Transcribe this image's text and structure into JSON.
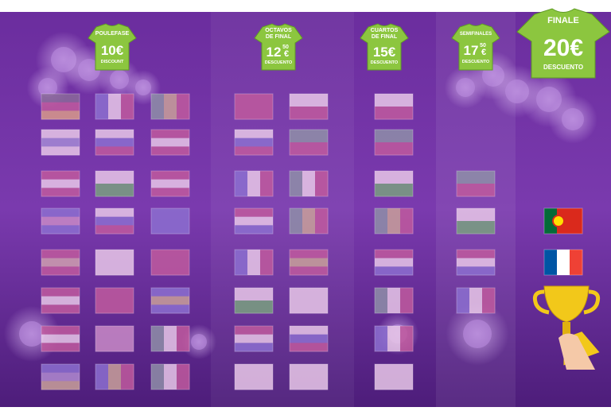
{
  "stages": [
    {
      "name_lines": [
        "POULEFASE"
      ],
      "price": "10€",
      "label": "DISCOUNT"
    },
    {
      "name_lines": [
        "OCTAVOS",
        "DE FINAL"
      ],
      "price": "12",
      "cents": "50",
      "currency": "€",
      "label": "DESCUENTO"
    },
    {
      "name_lines": [
        "CUARTOS",
        "DE FINAL"
      ],
      "price": "15€",
      "label": "DESCUENTO"
    },
    {
      "name_lines": [
        "SEMIFINALES"
      ],
      "price": "17",
      "cents": "50",
      "currency": "€",
      "label": "DESCUENTO"
    },
    {
      "name_lines": [
        "FINALE"
      ],
      "price": "20€",
      "label": "DESCUENTO"
    }
  ]
}
